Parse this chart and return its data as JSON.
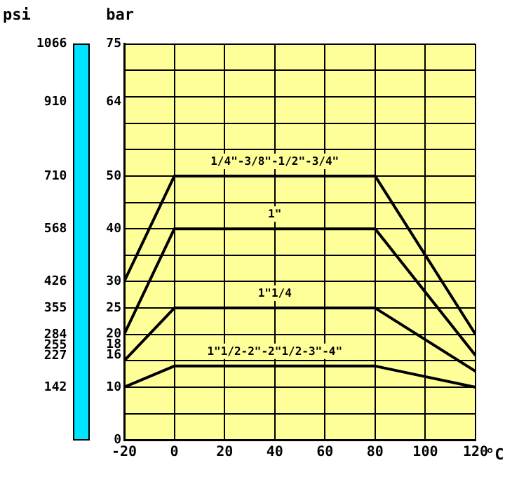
{
  "chart_data": {
    "type": "line",
    "x": [
      -20,
      0,
      80,
      120
    ],
    "series": [
      {
        "name": "1/4\"-3/8\"-1/2\"-3/4\"",
        "color": "#000000",
        "values": [
          30,
          50,
          50,
          20
        ]
      },
      {
        "name": "1\"",
        "color": "#000000",
        "values": [
          20,
          40,
          40,
          16
        ]
      },
      {
        "name": "1\"1/4",
        "color": "#000000",
        "values": [
          15,
          25,
          25,
          13
        ]
      },
      {
        "name": "1\"1/2-2\"-2\"1/2-3\"-4\"",
        "color": "#000000",
        "values": [
          10,
          14,
          14,
          10
        ]
      }
    ],
    "xlabel": "°C",
    "ylabel": "bar",
    "y2label": "psi",
    "xlim": [
      -20,
      120
    ],
    "xticks": [
      -20,
      0,
      20,
      40,
      60,
      80,
      100,
      120
    ],
    "ylim": [
      0,
      75
    ],
    "yticks": [
      0,
      {
        "value": 5,
        "label": null
      },
      10,
      {
        "value": 15,
        "label": null
      },
      16,
      18,
      20,
      25,
      30,
      {
        "value": 35,
        "label": null
      },
      40,
      {
        "value": 45,
        "label": null
      },
      50,
      {
        "value": 55,
        "label": null
      },
      {
        "value": 60,
        "label": null
      },
      64,
      {
        "value": 65,
        "label": null
      },
      {
        "value": 70,
        "label": null
      },
      75
    ],
    "y2lim": [
      0,
      1066
    ],
    "y2ticks": [
      142,
      227,
      255,
      284,
      355,
      426,
      568,
      710,
      910,
      1066
    ],
    "grid": true,
    "legend": false,
    "marker": "none",
    "line_style": "solid"
  }
}
